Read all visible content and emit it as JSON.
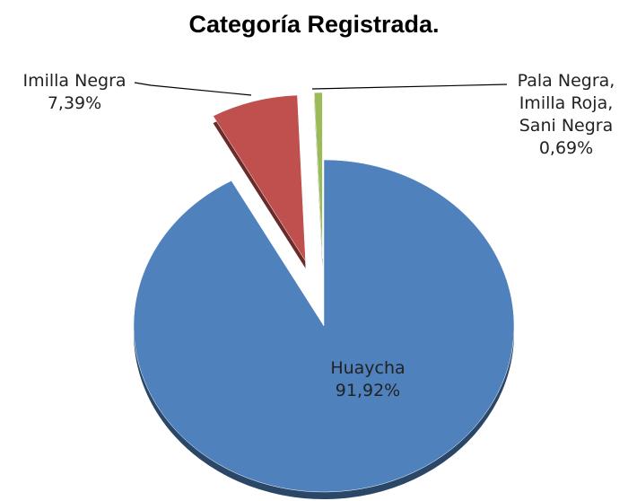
{
  "chart_data": {
    "type": "pie",
    "title": "Categoría Registrada.",
    "categories": [
      "Huaycha",
      "Imilla Negra",
      "Pala Negra, Imilla Roja, Sani Negra"
    ],
    "values": [
      91.92,
      7.39,
      0.69
    ],
    "value_labels": [
      "91,92%",
      "7,39%",
      "0,69%"
    ],
    "colors": [
      "#4f81bd",
      "#c0504d",
      "#9bbb59"
    ]
  }
}
